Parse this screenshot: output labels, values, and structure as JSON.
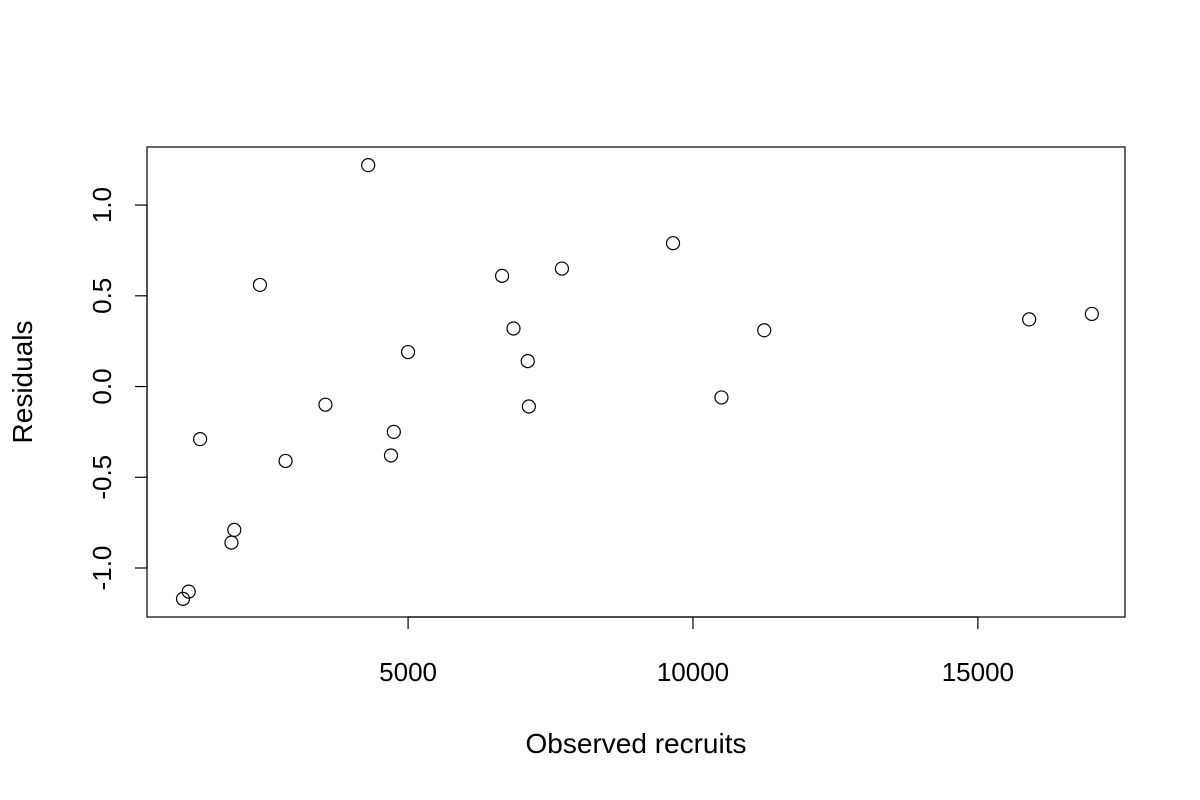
{
  "chart_data": {
    "type": "scatter",
    "title": "",
    "xlabel": "Observed recruits",
    "ylabel": "Residuals",
    "xlim": [
      418,
      17582
    ],
    "ylim": [
      -1.27,
      1.32
    ],
    "x_ticks": [
      5000,
      10000,
      15000
    ],
    "x_tick_labels": [
      "5000",
      "10000",
      "15000"
    ],
    "y_ticks": [
      -1.0,
      -0.5,
      0.0,
      0.5,
      1.0
    ],
    "y_tick_labels": [
      "-1.0",
      "-0.5",
      "0.0",
      "0.5",
      "1.0"
    ],
    "grid": false,
    "marker": "open-circle",
    "points": [
      {
        "x": 1050,
        "y": -1.17
      },
      {
        "x": 1150,
        "y": -1.13
      },
      {
        "x": 1350,
        "y": -0.29
      },
      {
        "x": 1900,
        "y": -0.86
      },
      {
        "x": 1950,
        "y": -0.79
      },
      {
        "x": 2400,
        "y": 0.56
      },
      {
        "x": 2850,
        "y": -0.41
      },
      {
        "x": 3550,
        "y": -0.1
      },
      {
        "x": 4300,
        "y": 1.22
      },
      {
        "x": 4700,
        "y": -0.38
      },
      {
        "x": 4750,
        "y": -0.25
      },
      {
        "x": 5000,
        "y": 0.19
      },
      {
        "x": 6650,
        "y": 0.61
      },
      {
        "x": 6850,
        "y": 0.32
      },
      {
        "x": 7100,
        "y": 0.14
      },
      {
        "x": 7120,
        "y": -0.11
      },
      {
        "x": 7700,
        "y": 0.65
      },
      {
        "x": 9650,
        "y": 0.79
      },
      {
        "x": 10500,
        "y": -0.06
      },
      {
        "x": 11250,
        "y": 0.31
      },
      {
        "x": 15900,
        "y": 0.37
      },
      {
        "x": 17000,
        "y": 0.4
      }
    ]
  }
}
